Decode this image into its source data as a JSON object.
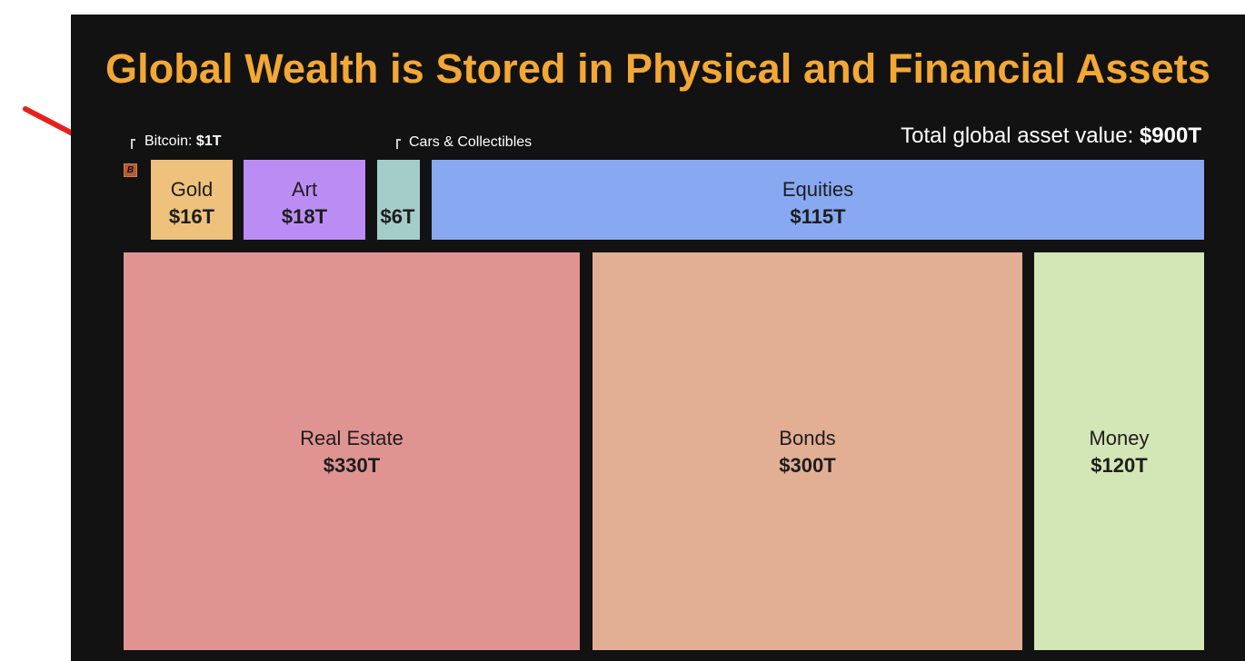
{
  "title": "Global Wealth is Stored in Physical and Financial Assets",
  "total": {
    "label": "Total global asset value: ",
    "value": "$900T"
  },
  "colors": {
    "title": "#f3a835",
    "background": "#131212",
    "bitcoin": "#b45b33",
    "gold": "#eec27c",
    "art": "#bb8df4",
    "cars": "#a4cdc9",
    "equities": "#88a9f2",
    "real_estate": "#df9492",
    "bonds": "#e2ae94",
    "money": "#d3e6b6",
    "arrow": "#e8201c"
  },
  "icons": {
    "bitcoin": "bitcoin-icon",
    "pointer": "red-arrow-icon"
  },
  "callouts": {
    "bitcoin": {
      "label": "Bitcoin: ",
      "value": "$1T"
    },
    "cars": {
      "label": "Cars & Collectibles"
    }
  },
  "chart_data": {
    "type": "treemap",
    "title": "Global Wealth is Stored in Physical and Financial Assets",
    "unit": "trillion USD",
    "total": 900,
    "items": [
      {
        "name": "Bitcoin",
        "value": 1,
        "display_value": "$1T"
      },
      {
        "name": "Gold",
        "value": 16,
        "display_value": "$16T"
      },
      {
        "name": "Art",
        "value": 18,
        "display_value": "$18T"
      },
      {
        "name": "Cars & Collectibles",
        "value": 6,
        "display_value": "$6T"
      },
      {
        "name": "Equities",
        "value": 115,
        "display_value": "$115T"
      },
      {
        "name": "Real Estate",
        "value": 330,
        "display_value": "$330T"
      },
      {
        "name": "Bonds",
        "value": 300,
        "display_value": "$300T"
      },
      {
        "name": "Money",
        "value": 120,
        "display_value": "$120T"
      }
    ]
  }
}
